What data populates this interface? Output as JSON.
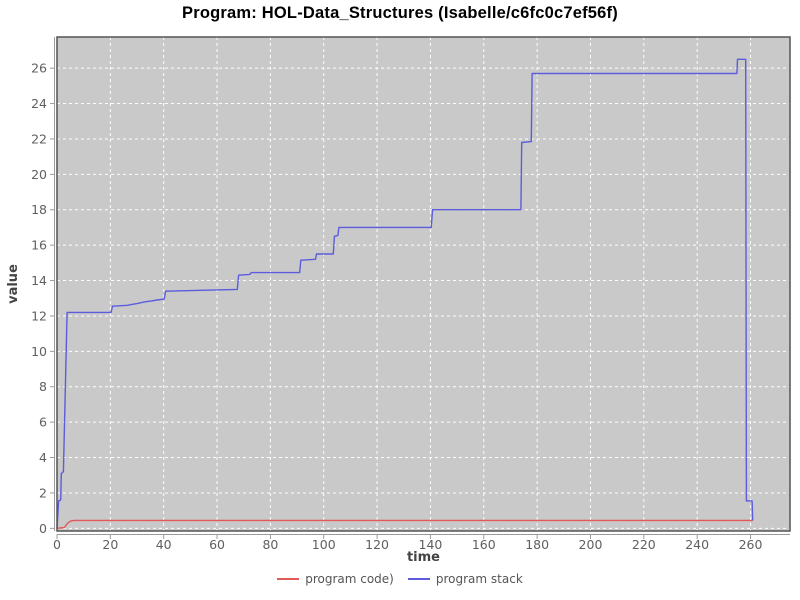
{
  "chart_data": {
    "type": "line",
    "title": "Program: HOL-Data_Structures (Isabelle/c6fc0c7ef56f)",
    "xlabel": "time",
    "ylabel": "value",
    "xlim": [
      0,
      274.8
    ],
    "ylim": [
      -0.15,
      27.76
    ],
    "xticks": [
      0,
      20,
      40,
      60,
      80,
      100,
      120,
      140,
      160,
      180,
      200,
      220,
      240,
      260
    ],
    "yticks": [
      0,
      2,
      4,
      6,
      8,
      10,
      12,
      14,
      16,
      18,
      20,
      22,
      24,
      26
    ],
    "grid": true,
    "legend_position": "bottom",
    "colors": {
      "plot_background": "#c9c9c9",
      "grid_color": "#ffffff",
      "frame_color": "#545454",
      "tick_line_color": "#9a9a9a",
      "tick_label_color": "#606060",
      "axis_title_color": "#444444",
      "title_color": "#000000",
      "legend_text_color": "#555555"
    },
    "series": [
      {
        "name": "program code)",
        "color": "#e05a5a",
        "points": [
          [
            0,
            0
          ],
          [
            2.8,
            0.05
          ],
          [
            3.5,
            0.2
          ],
          [
            4.2,
            0.32
          ],
          [
            5.2,
            0.42
          ],
          [
            6.5,
            0.45
          ],
          [
            260.8,
            0.45
          ]
        ]
      },
      {
        "name": "program stack",
        "color": "#5c5cdd",
        "points": [
          [
            0,
            0
          ],
          [
            0.6,
            1.55
          ],
          [
            1.4,
            1.6
          ],
          [
            1.6,
            3.1
          ],
          [
            2.4,
            3.2
          ],
          [
            3.8,
            12.2
          ],
          [
            20.3,
            12.2
          ],
          [
            20.8,
            12.55
          ],
          [
            26.5,
            12.6
          ],
          [
            28,
            12.65
          ],
          [
            30,
            12.7
          ],
          [
            33,
            12.8
          ],
          [
            35.5,
            12.85
          ],
          [
            37.5,
            12.9
          ],
          [
            40.2,
            12.95
          ],
          [
            40.7,
            13.4
          ],
          [
            54,
            13.45
          ],
          [
            67.6,
            13.5
          ],
          [
            68.1,
            14.3
          ],
          [
            72.3,
            14.35
          ],
          [
            72.8,
            14.45
          ],
          [
            91,
            14.45
          ],
          [
            91.4,
            15.15
          ],
          [
            96.9,
            15.2
          ],
          [
            97.3,
            15.5
          ],
          [
            103.6,
            15.5
          ],
          [
            104,
            16.5
          ],
          [
            105.3,
            16.55
          ],
          [
            105.7,
            17.0
          ],
          [
            140.3,
            17.0
          ],
          [
            140.8,
            18.0
          ],
          [
            173.9,
            18.0
          ],
          [
            174.2,
            21.8
          ],
          [
            177.8,
            21.85
          ],
          [
            178.1,
            25.7
          ],
          [
            254.9,
            25.7
          ],
          [
            255.1,
            26.5
          ],
          [
            258.2,
            26.5
          ],
          [
            258.45,
            1.55
          ],
          [
            260.6,
            1.55
          ],
          [
            260.8,
            0.45
          ]
        ]
      }
    ]
  }
}
